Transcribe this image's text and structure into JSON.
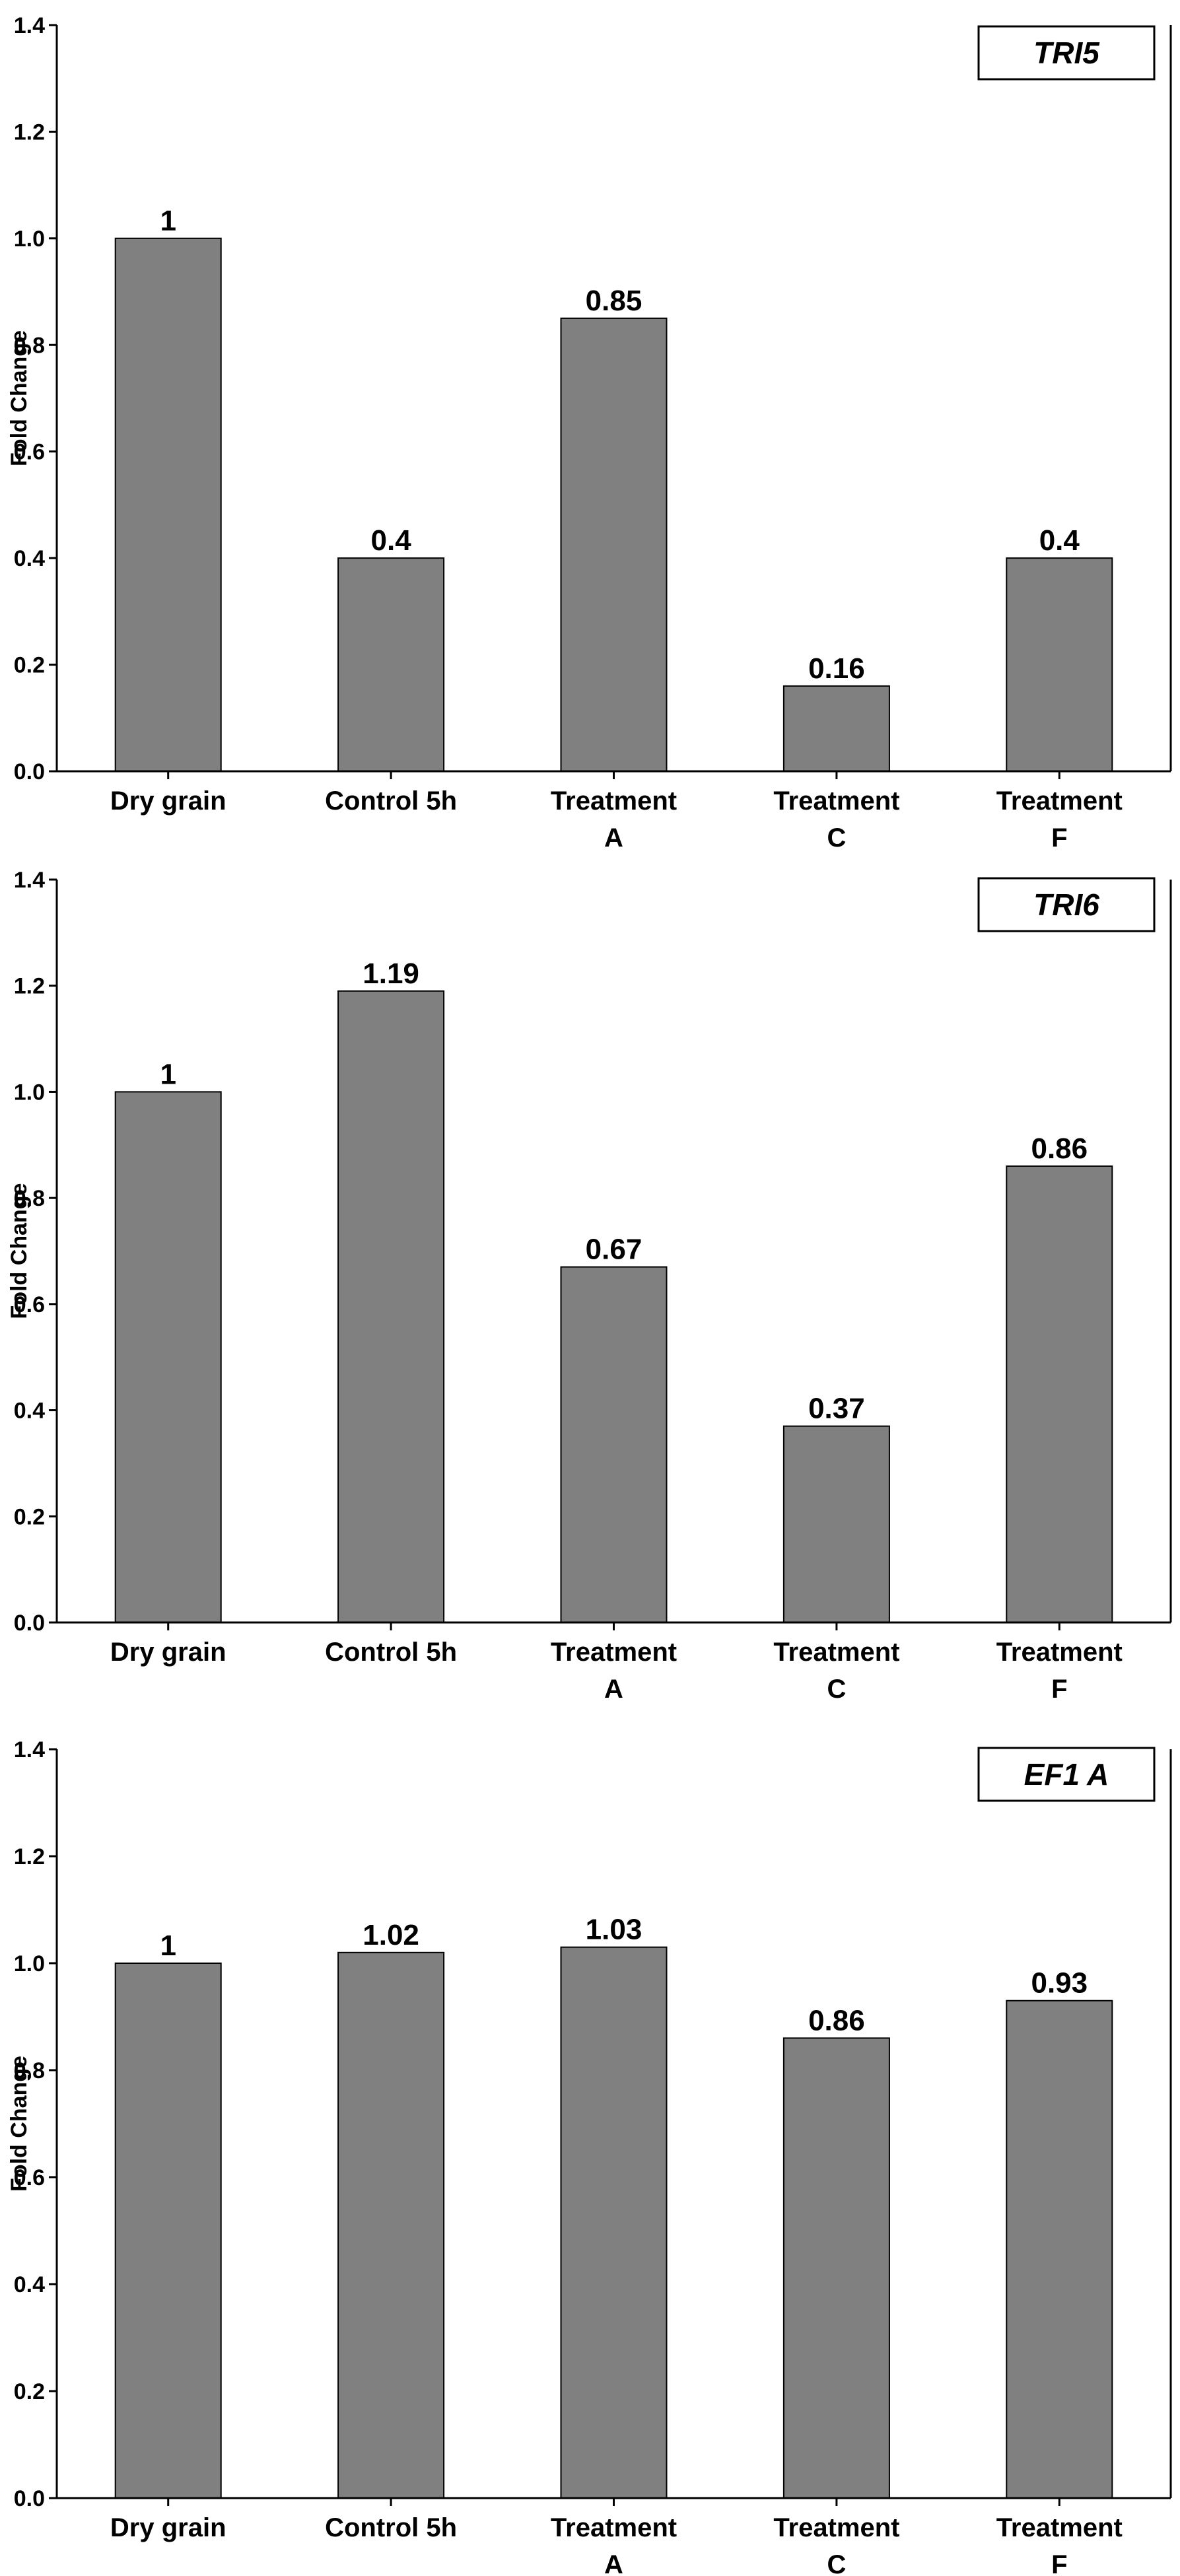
{
  "chart_data": [
    {
      "type": "bar",
      "gene_label": "TRI5",
      "categories": [
        [
          "Dry grain"
        ],
        [
          "Control 5h"
        ],
        [
          "Treatment",
          "A"
        ],
        [
          "Treatment",
          "C"
        ],
        [
          "Treatment",
          "F"
        ]
      ],
      "values": [
        1,
        0.4,
        0.85,
        0.16,
        0.4
      ],
      "value_labels": [
        "1",
        "0.4",
        "0.85",
        "0.16",
        "0.4"
      ],
      "ylabel": "Fold Change",
      "xlabel": "",
      "ylim": [
        0,
        1.4
      ],
      "yticks": [
        "0.0",
        "0.2",
        "0.4",
        "0.6",
        "0.8",
        "1.0",
        "1.2",
        "1.4"
      ],
      "grid": false,
      "bar_color": "#808080"
    },
    {
      "type": "bar",
      "gene_label": "TRI6",
      "categories": [
        [
          "Dry grain"
        ],
        [
          "Control 5h"
        ],
        [
          "Treatment",
          "A"
        ],
        [
          "Treatment",
          "C"
        ],
        [
          "Treatment",
          "F"
        ]
      ],
      "values": [
        1,
        1.19,
        0.67,
        0.37,
        0.86
      ],
      "value_labels": [
        "1",
        "1.19",
        "0.67",
        "0.37",
        "0.86"
      ],
      "ylabel": "Fold Change",
      "xlabel": "",
      "ylim": [
        0,
        1.4
      ],
      "yticks": [
        "0.0",
        "0.2",
        "0.4",
        "0.6",
        "0.8",
        "1.0",
        "1.2",
        "1.4"
      ],
      "grid": false,
      "bar_color": "#808080"
    },
    {
      "type": "bar",
      "gene_label": "EF1 A",
      "categories": [
        [
          "Dry grain"
        ],
        [
          "Control 5h"
        ],
        [
          "Treatment",
          "A"
        ],
        [
          "Treatment",
          "C"
        ],
        [
          "Treatment",
          "F"
        ]
      ],
      "values": [
        1,
        1.02,
        1.03,
        0.86,
        0.93
      ],
      "value_labels": [
        "1",
        "1.02",
        "1.03",
        "0.86",
        "0.93"
      ],
      "ylabel": "Fold Change",
      "xlabel": "",
      "ylim": [
        0,
        1.4
      ],
      "yticks": [
        "0.0",
        "0.2",
        "0.4",
        "0.6",
        "0.8",
        "1.0",
        "1.2",
        "1.4"
      ],
      "grid": false,
      "bar_color": "#808080"
    }
  ]
}
